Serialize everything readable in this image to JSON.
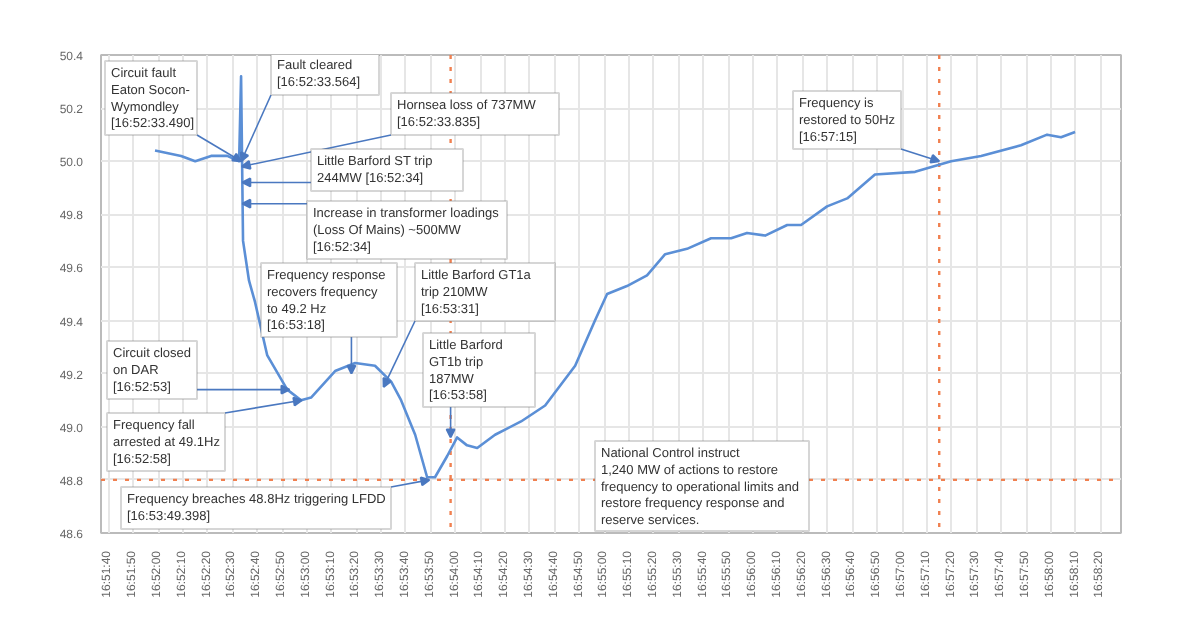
{
  "chart_data": {
    "type": "line",
    "x": [
      16.86633,
      16.86925,
      16.87083,
      16.87261,
      16.87442,
      16.87575,
      16.87597,
      16.87619,
      16.87686,
      16.87753,
      16.87889,
      16.88114,
      16.88269,
      16.88381,
      16.8865,
      16.88875,
      16.89097,
      16.89278,
      16.89389,
      16.89547,
      16.89681,
      16.89769,
      16.89906,
      16.90017,
      16.90128,
      16.90242,
      16.90442,
      16.90733,
      16.91003,
      16.91339,
      16.91561,
      16.91697,
      16.91919,
      16.92144,
      16.92347,
      16.92592,
      16.92861,
      16.93086,
      16.93264,
      16.93467,
      16.93714,
      16.93869,
      16.94161,
      16.94386,
      16.94697,
      16.95147,
      16.9555,
      16.95886,
      16.96333,
      16.96625,
      16.96781,
      16.96939
    ],
    "series": [
      {
        "color": "#5b8fd6",
        "values": [
          50.04,
          50.02,
          50.0,
          50.02,
          50.02,
          50.0,
          50.32,
          49.7,
          49.55,
          49.47,
          49.27,
          49.14,
          49.1,
          49.11,
          49.21,
          49.24,
          49.23,
          49.17,
          49.1,
          48.97,
          48.81,
          48.81,
          48.89,
          48.96,
          48.93,
          48.92,
          48.97,
          49.02,
          49.08,
          49.23,
          49.4,
          49.5,
          49.53,
          49.57,
          49.65,
          49.67,
          49.71,
          49.71,
          49.73,
          49.72,
          49.76,
          49.76,
          49.83,
          49.86,
          49.95,
          49.96,
          50.0,
          50.02,
          50.06,
          50.1,
          50.09,
          50.11
        ]
      }
    ],
    "xlim": [
      16.86028,
      16.97453
    ],
    "xticks": [
      {
        "value": 16.86111,
        "label": "16:51:40"
      },
      {
        "value": 16.86389,
        "label": "16:51:50"
      },
      {
        "value": 16.86667,
        "label": "16:52:00"
      },
      {
        "value": 16.86944,
        "label": "16:52:10"
      },
      {
        "value": 16.87222,
        "label": "16:52:20"
      },
      {
        "value": 16.875,
        "label": "16:52:30"
      },
      {
        "value": 16.87778,
        "label": "16:52:40"
      },
      {
        "value": 16.88056,
        "label": "16:52:50"
      },
      {
        "value": 16.88333,
        "label": "16:53:00"
      },
      {
        "value": 16.88611,
        "label": "16:53:10"
      },
      {
        "value": 16.88889,
        "label": "16:53:20"
      },
      {
        "value": 16.89167,
        "label": "16:53:30"
      },
      {
        "value": 16.89444,
        "label": "16:53:40"
      },
      {
        "value": 16.89722,
        "label": "16:53:50"
      },
      {
        "value": 16.9,
        "label": "16:54:00"
      },
      {
        "value": 16.90278,
        "label": "16:54:10"
      },
      {
        "value": 16.90556,
        "label": "16:54:20"
      },
      {
        "value": 16.90833,
        "label": "16:54:30"
      },
      {
        "value": 16.91111,
        "label": "16:54:40"
      },
      {
        "value": 16.91389,
        "label": "16:54:50"
      },
      {
        "value": 16.91667,
        "label": "16:55:00"
      },
      {
        "value": 16.91944,
        "label": "16:55:10"
      },
      {
        "value": 16.92222,
        "label": "16:55:20"
      },
      {
        "value": 16.925,
        "label": "16:55:30"
      },
      {
        "value": 16.92778,
        "label": "16:55:40"
      },
      {
        "value": 16.93056,
        "label": "16:55:50"
      },
      {
        "value": 16.93333,
        "label": "16:56:00"
      },
      {
        "value": 16.93611,
        "label": "16:56:10"
      },
      {
        "value": 16.93889,
        "label": "16:56:20"
      },
      {
        "value": 16.94167,
        "label": "16:56:30"
      },
      {
        "value": 16.94444,
        "label": "16:56:40"
      },
      {
        "value": 16.94722,
        "label": "16:56:50"
      },
      {
        "value": 16.95,
        "label": "16:57:00"
      },
      {
        "value": 16.95278,
        "label": "16:57:10"
      },
      {
        "value": 16.95556,
        "label": "16:57:20"
      },
      {
        "value": 16.95833,
        "label": "16:57:30"
      },
      {
        "value": 16.96111,
        "label": "16:57:40"
      },
      {
        "value": 16.96389,
        "label": "16:57:50"
      },
      {
        "value": 16.96667,
        "label": "16:58:00"
      },
      {
        "value": 16.96944,
        "label": "16:58:10"
      },
      {
        "value": 16.97222,
        "label": "16:58:20"
      }
    ],
    "ylim": [
      48.6,
      50.4
    ],
    "yticks": [
      48.6,
      48.8,
      {
        "value": 49.0,
        "label": "49.0"
      },
      49.2,
      49.4,
      49.6,
      49.8,
      {
        "value": 50.0,
        "label": "50.0"
      },
      50.2,
      50.4
    ],
    "grid": true,
    "marker": "none",
    "line_style": "solid",
    "ref_lines": [
      {
        "axis": "x",
        "value": 16.95417,
        "color": "#f08050",
        "line_style": "dotted"
      },
      {
        "axis": "x",
        "value": 16.89944,
        "color": "#f08050",
        "line_style": "dotted"
      },
      {
        "axis": "y",
        "value": 48.8,
        "color": "#f08050",
        "line_style": "dotted"
      }
    ],
    "annotations": [
      {
        "text": "Circuit fault\nEaton Socon-\nWymondley\n[16:52:33.490]",
        "x": 16.87597,
        "y": 50.0
      },
      {
        "text": "Fault cleared\n[16:52:33.564]",
        "x": 16.87599,
        "y": 50.0
      },
      {
        "text": "Hornsea loss of 737MW\n[16:52:33.835]",
        "x": 16.87606,
        "y": 49.98
      },
      {
        "text": "Little Barford ST trip\n244MW [16:52:34]",
        "x": 16.87611,
        "y": 49.92
      },
      {
        "text": "Increase in transformer loadings\n(Loss Of Mains) ~500MW\n[16:52:34]",
        "x": 16.87611,
        "y": 49.84
      },
      {
        "text": "Frequency response\nrecovers frequency\nto 49.2 Hz\n[16:53:18]",
        "x": 16.88833,
        "y": 49.2
      },
      {
        "text": "Little Barford GT1a\ntrip 210MW\n[16:53:31]",
        "x": 16.89194,
        "y": 49.15
      },
      {
        "text": "Circuit closed\non DAR\n[16:52:53]",
        "x": 16.88139,
        "y": 49.14
      },
      {
        "text": "Frequency fall\narrested at 49.1Hz\n[16:52:58]",
        "x": 16.88278,
        "y": 49.1
      },
      {
        "text": "Little Barford\nGT1b trip\n187MW\n[16:53:58]",
        "x": 16.89944,
        "y": 48.96
      },
      {
        "text": "Frequency breaches 48.8Hz triggering LFDD\n[16:53:49.398]",
        "x": 16.89706,
        "y": 48.8
      },
      {
        "text": "Frequency is\nrestored to 50Hz\n[16:57:15]",
        "x": 16.95417,
        "y": 50.0
      },
      "National Control instruct\n1,240 MW of actions to restore\nfrequency to operational limits and\nrestore frequency response and\nreserve services."
    ]
  }
}
